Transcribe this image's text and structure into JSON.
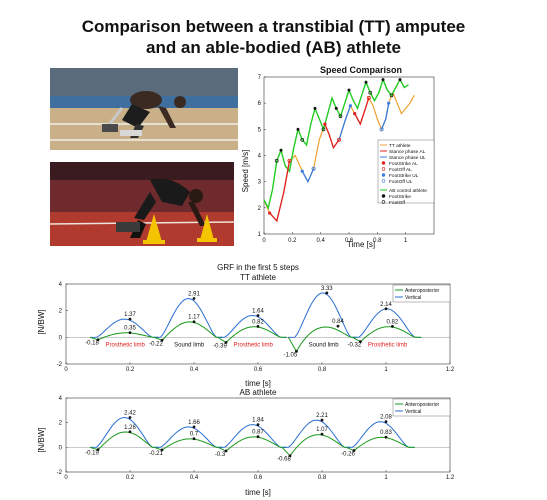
{
  "title": {
    "line1": "Comparison between a transtibial (TT) amputee",
    "line2": "and an able-bodied (AB) athlete"
  },
  "photos": [
    {
      "name": "tt-athlete-photo",
      "description_icon": "sprinter-in-blocks-prosthesis"
    },
    {
      "name": "ab-athlete-photo",
      "description_icon": "sprinter-in-blocks-cones"
    }
  ],
  "colors": {
    "tt_line": "#f0a030",
    "stance_al": "#e02020",
    "stance_ul": "#3a7fe0",
    "ab_line": "#22cc22",
    "grf_ap": "#1a9a1a",
    "grf_v": "#2a6fd0",
    "red_label": "#e02020"
  },
  "chart_data": [
    {
      "type": "line",
      "title": "Speed Comparison",
      "xlabel": "Time [s]",
      "ylabel": "Speed [m/s]",
      "xlim": [
        0,
        1.2
      ],
      "ylim": [
        1,
        7
      ],
      "xticks": [
        "0",
        "0.2",
        "0.4",
        "0.6",
        "0.8",
        "1"
      ],
      "yticks": [
        "1",
        "2",
        "3",
        "4",
        "5",
        "6",
        "7"
      ],
      "legend_position": "right",
      "legend": [
        "TT athlete",
        "Stance phase AL",
        "Stance phase UL",
        "FootStrike AL",
        "FootOff AL",
        "FootStrike UL",
        "FootOff UL",
        "AB control athlete",
        "FootStrike",
        "FootOff"
      ],
      "series": [
        {
          "name": "TT athlete",
          "x": [
            0,
            0.04,
            0.09,
            0.14,
            0.18,
            0.22,
            0.27,
            0.31,
            0.35,
            0.39,
            0.43,
            0.46,
            0.49,
            0.53,
            0.57,
            0.61,
            0.64,
            0.68,
            0.71,
            0.74,
            0.77,
            0.8,
            0.83,
            0.86,
            0.88,
            0.91,
            0.94,
            0.97,
            1.0,
            1.03,
            1.06
          ],
          "y": [
            2.3,
            1.8,
            1.5,
            2.6,
            3.8,
            4.0,
            3.4,
            3.0,
            3.5,
            4.6,
            5.2,
            4.8,
            4.3,
            4.6,
            5.3,
            5.9,
            5.6,
            5.2,
            5.7,
            6.2,
            5.9,
            5.4,
            5.0,
            5.4,
            6.0,
            6.4,
            6.0,
            5.6,
            5.8,
            6.0,
            6.3
          ]
        },
        {
          "name": "AB control athlete",
          "x": [
            0,
            0.03,
            0.06,
            0.09,
            0.12,
            0.15,
            0.18,
            0.21,
            0.24,
            0.27,
            0.3,
            0.33,
            0.36,
            0.39,
            0.42,
            0.45,
            0.48,
            0.51,
            0.54,
            0.57,
            0.6,
            0.63,
            0.66,
            0.69,
            0.72,
            0.75,
            0.78,
            0.81,
            0.84,
            0.87,
            0.9,
            0.93,
            0.96,
            0.99,
            1.02
          ],
          "y": [
            2.3,
            2.0,
            2.7,
            3.8,
            4.2,
            3.6,
            3.4,
            4.3,
            5.0,
            4.6,
            4.4,
            5.2,
            5.8,
            5.4,
            5.0,
            5.6,
            6.2,
            5.8,
            5.5,
            6.0,
            6.5,
            6.1,
            5.8,
            6.3,
            6.8,
            6.4,
            6.1,
            6.4,
            6.9,
            6.5,
            6.3,
            6.6,
            6.9,
            6.6,
            6.7
          ]
        }
      ]
    },
    {
      "type": "line",
      "title": "GRF in the first 5 steps",
      "subtitle": "TT athlete",
      "xlabel": "time [s]",
      "ylabel": "[N/BW]",
      "xlim": [
        0,
        1.2
      ],
      "ylim": [
        -2,
        4
      ],
      "xticks": [
        "0",
        "0.2",
        "0.4",
        "0.6",
        "0.8",
        "1",
        "1.2"
      ],
      "yticks": [
        "-2",
        "0",
        "2",
        "4"
      ],
      "legend_position": "top-right",
      "legend": [
        "Anteroposterior",
        "Vertical"
      ],
      "peaks_vertical": [
        {
          "x": 0.2,
          "y": 1.37,
          "label": "1.37"
        },
        {
          "x": 0.4,
          "y": 2.91,
          "label": "2.91"
        },
        {
          "x": 0.6,
          "y": 1.64,
          "label": "1.64"
        },
        {
          "x": 0.815,
          "y": 3.33,
          "label": "3.33"
        },
        {
          "x": 1.0,
          "y": 2.14,
          "label": "2.14"
        }
      ],
      "peaks_anteroposterior": [
        {
          "x": 0.2,
          "y": 0.35,
          "label": "0.35"
        },
        {
          "x": 0.4,
          "y": 1.17,
          "label": "1.17"
        },
        {
          "x": 0.6,
          "y": 0.82,
          "label": "0.82"
        },
        {
          "x": 0.85,
          "y": 0.84,
          "label": "0.84"
        },
        {
          "x": 1.02,
          "y": 0.82,
          "label": "0.82"
        }
      ],
      "troughs": [
        {
          "x": 0.1,
          "y": -0.18,
          "label": "-0.18"
        },
        {
          "x": 0.3,
          "y": -0.22,
          "label": "-0.22"
        },
        {
          "x": 0.5,
          "y": -0.39,
          "label": "-0.39"
        },
        {
          "x": 0.72,
          "y": -1.05,
          "label": "-1.05"
        },
        {
          "x": 0.92,
          "y": -0.32,
          "label": "-0.32"
        }
      ],
      "limb_labels": [
        {
          "label": "Prosthetic limb",
          "color": "red"
        },
        {
          "label": "Sound limb",
          "color": "black"
        },
        {
          "label": "Prosthetic limb",
          "color": "red"
        },
        {
          "label": "Sound limb",
          "color": "black"
        },
        {
          "label": "Prosthetic limb",
          "color": "red"
        }
      ]
    },
    {
      "type": "line",
      "title": "AB athlete",
      "xlabel": "time [s]",
      "ylabel": "[N/BW]",
      "xlim": [
        0,
        1.2
      ],
      "ylim": [
        -2,
        4
      ],
      "xticks": [
        "0",
        "0.2",
        "0.4",
        "0.6",
        "0.8",
        "1",
        "1.2"
      ],
      "yticks": [
        "-2",
        "0",
        "2",
        "4"
      ],
      "legend_position": "top-right",
      "legend": [
        "Anteroposterior",
        "Vertical"
      ],
      "peaks_vertical": [
        {
          "x": 0.2,
          "y": 2.42,
          "label": "2.42"
        },
        {
          "x": 0.4,
          "y": 1.66,
          "label": "1.66"
        },
        {
          "x": 0.6,
          "y": 1.84,
          "label": "1.84"
        },
        {
          "x": 0.8,
          "y": 2.21,
          "label": "2.21"
        },
        {
          "x": 1.0,
          "y": 2.08,
          "label": "2.08"
        }
      ],
      "peaks_anteroposterior": [
        {
          "x": 0.2,
          "y": 1.26,
          "label": "1.26"
        },
        {
          "x": 0.4,
          "y": 0.7,
          "label": "0.7"
        },
        {
          "x": 0.6,
          "y": 0.87,
          "label": "0.87"
        },
        {
          "x": 0.8,
          "y": 1.07,
          "label": "1.07"
        },
        {
          "x": 1.0,
          "y": 0.83,
          "label": "0.83"
        }
      ],
      "troughs": [
        {
          "x": 0.1,
          "y": -0.19,
          "label": "-0.19"
        },
        {
          "x": 0.3,
          "y": -0.21,
          "label": "-0.21"
        },
        {
          "x": 0.5,
          "y": -0.3,
          "label": "-0.3"
        },
        {
          "x": 0.7,
          "y": -0.68,
          "label": "-0.68"
        },
        {
          "x": 0.9,
          "y": -0.26,
          "label": "-0.26"
        }
      ]
    }
  ]
}
